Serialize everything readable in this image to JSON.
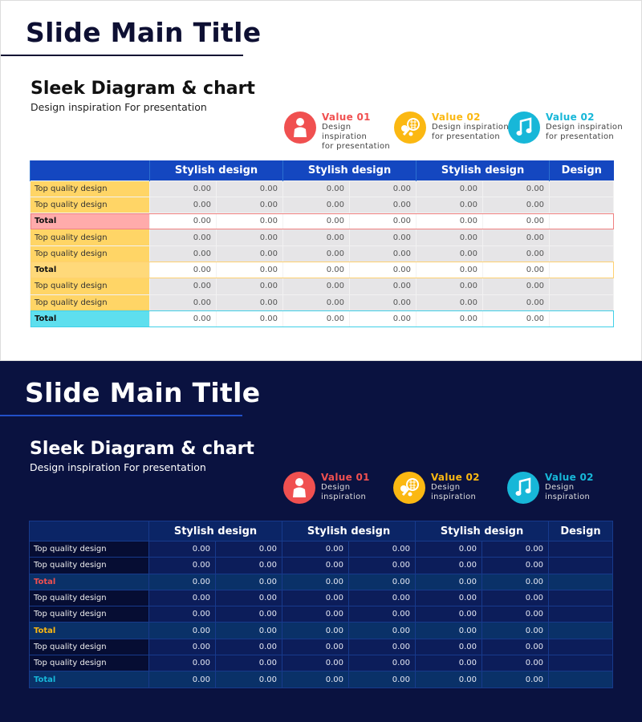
{
  "slides": [
    {
      "theme": "light",
      "main_title": "Slide Main Title",
      "heading": "Sleek Diagram & chart",
      "subheading": "Design inspiration For presentation",
      "values": [
        {
          "title": "Value 01",
          "text": [
            "Design",
            "inspiration",
            "for presentation"
          ],
          "color": "#f05050",
          "icon": "person-icon"
        },
        {
          "title": "Value 02",
          "text": [
            "Design inspiration",
            "for presentation"
          ],
          "color": "#fbb812",
          "icon": "sports-icon"
        },
        {
          "title": "Value 02",
          "text": [
            "Design inspiration",
            "for presentation"
          ],
          "color": "#17b7d8",
          "icon": "music-note-icon"
        }
      ]
    },
    {
      "theme": "dark",
      "main_title": "Slide Main Title",
      "heading": "Sleek Diagram & chart",
      "subheading": "Design inspiration For presentation",
      "values": [
        {
          "title": "Value 01",
          "text": [
            "Design",
            "inspiration"
          ],
          "color": "#f05050",
          "icon": "person-icon"
        },
        {
          "title": "Value 02",
          "text": [
            "Design",
            "inspiration"
          ],
          "color": "#fbb812",
          "icon": "sports-icon"
        },
        {
          "title": "Value 02",
          "text": [
            "Design",
            "inspiration"
          ],
          "color": "#17b7d8",
          "icon": "music-note-icon"
        }
      ]
    }
  ],
  "table": {
    "headers": [
      "",
      "Stylish design",
      "Stylish design",
      "Stylish design",
      "Design"
    ],
    "rows": [
      {
        "label": "Top quality design",
        "total": false,
        "values": [
          "0.00",
          "0.00",
          "0.00",
          "0.00",
          "0.00",
          "0.00",
          ""
        ]
      },
      {
        "label": "Top quality design",
        "total": false,
        "values": [
          "0.00",
          "0.00",
          "0.00",
          "0.00",
          "0.00",
          "0.00",
          ""
        ]
      },
      {
        "label": "Total",
        "total": true,
        "light_fill": "#ffabab",
        "border": "#f08080",
        "dark_text": "#f05050",
        "values": [
          "0.00",
          "0.00",
          "0.00",
          "0.00",
          "0.00",
          "0.00",
          ""
        ]
      },
      {
        "label": "Top quality design",
        "total": false,
        "values": [
          "0.00",
          "0.00",
          "0.00",
          "0.00",
          "0.00",
          "0.00",
          ""
        ]
      },
      {
        "label": "Top quality design",
        "total": false,
        "values": [
          "0.00",
          "0.00",
          "0.00",
          "0.00",
          "0.00",
          "0.00",
          ""
        ]
      },
      {
        "label": "Total",
        "total": true,
        "light_fill": "#ffd97a",
        "border": "#ffd070",
        "dark_text": "#fbb812",
        "values": [
          "0.00",
          "0.00",
          "0.00",
          "0.00",
          "0.00",
          "0.00",
          ""
        ]
      },
      {
        "label": "Top quality design",
        "total": false,
        "values": [
          "0.00",
          "0.00",
          "0.00",
          "0.00",
          "0.00",
          "0.00",
          ""
        ]
      },
      {
        "label": "Top quality design",
        "total": false,
        "values": [
          "0.00",
          "0.00",
          "0.00",
          "0.00",
          "0.00",
          "0.00",
          ""
        ]
      },
      {
        "label": "Total",
        "total": true,
        "light_fill": "#5edfee",
        "border": "#40d0e8",
        "dark_text": "#17b7d8",
        "values": [
          "0.00",
          "0.00",
          "0.00",
          "0.00",
          "0.00",
          "0.00",
          ""
        ]
      }
    ]
  }
}
